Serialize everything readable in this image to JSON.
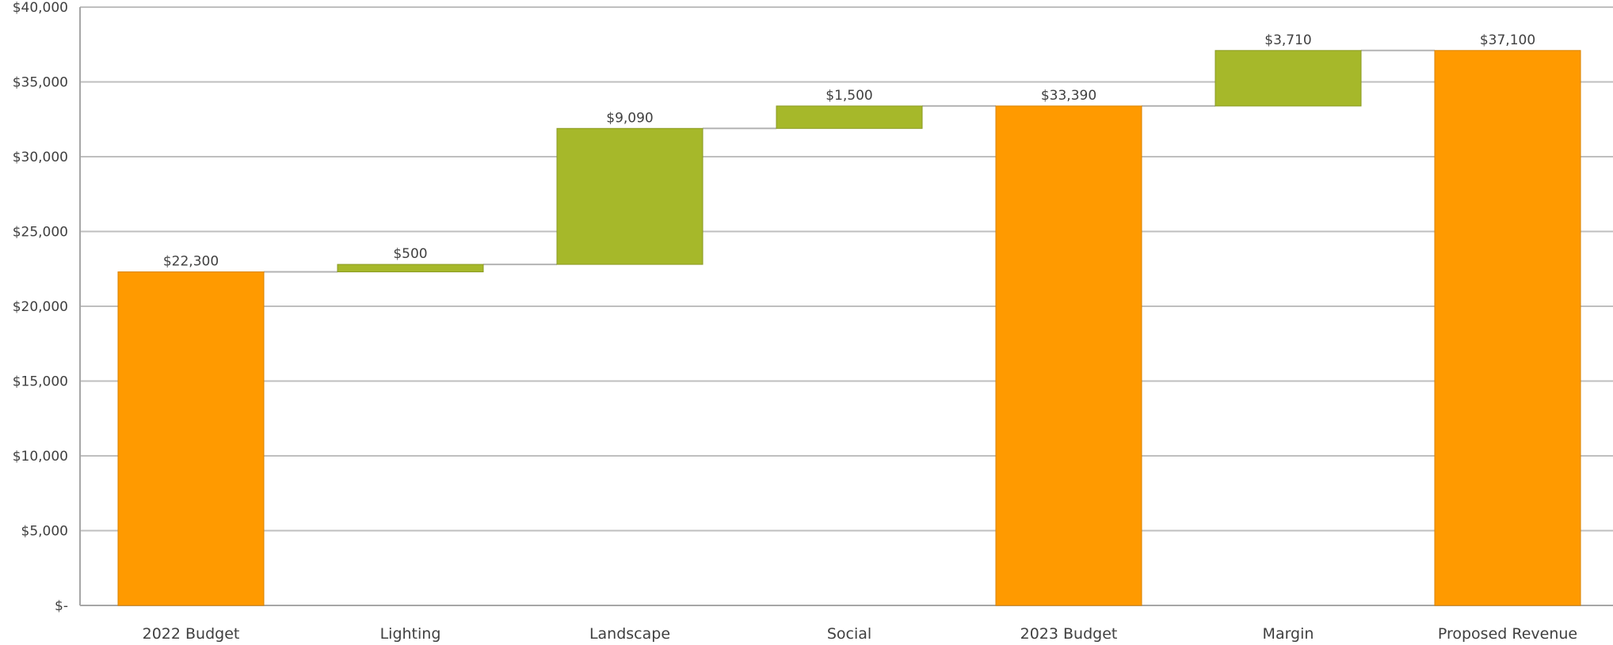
{
  "chart_data": {
    "type": "bar",
    "subtype": "waterfall",
    "categories": [
      "2022 Budget",
      "Lighting",
      "Landscape",
      "Social",
      "2023 Budget",
      "Margin",
      "Proposed Revenue"
    ],
    "values": [
      22300,
      500,
      9090,
      1500,
      33390,
      3710,
      37100
    ],
    "bar_kinds": [
      "total",
      "increase",
      "increase",
      "increase",
      "total",
      "increase",
      "total"
    ],
    "data_labels": [
      "$22,300",
      "$500",
      "$9,090",
      "$1,500",
      "$33,390",
      "$3,710",
      "$37,100"
    ],
    "ylim": [
      0,
      40000
    ],
    "y_ticks": [
      0,
      5000,
      10000,
      15000,
      20000,
      25000,
      30000,
      35000,
      40000
    ],
    "y_tick_labels": [
      "$-",
      "$5,000",
      "$10,000",
      "$15,000",
      "$20,000",
      "$25,000",
      "$30,000",
      "$35,000",
      "$40,000"
    ],
    "title": "",
    "xlabel": "",
    "ylabel": "",
    "grid": true,
    "legend": "none",
    "colors": {
      "total": "#FF9A00",
      "total_edge": "#D98300",
      "increase": "#A6B82A",
      "increase_edge": "#8A9A22",
      "connector": "#B3B3B3",
      "grid": "#BFBFBF",
      "axis": "#A6A6A6",
      "text": "#404040"
    }
  }
}
